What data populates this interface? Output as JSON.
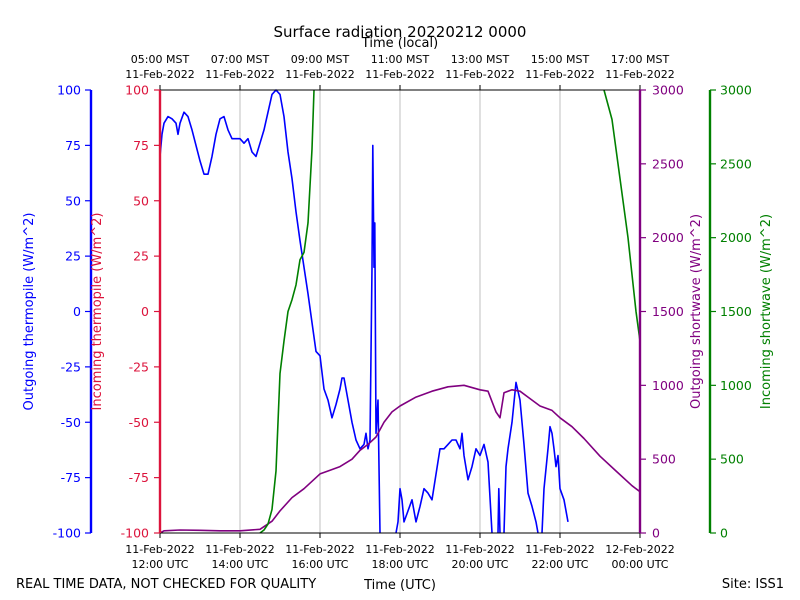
{
  "chart_data": {
    "type": "line",
    "title": "Surface radiation 20220212 0000",
    "top_axis_label": "Time (local)",
    "xlabel": "Time (UTC)",
    "footer_left": "REAL TIME DATA, NOT CHECKED FOR QUALITY",
    "footer_right": "Site: ISS1",
    "x_range_hours_utc": [
      12,
      24
    ],
    "bottom_ticks": [
      {
        "hour": 12,
        "line1": "11-Feb-2022",
        "line2": "12:00 UTC"
      },
      {
        "hour": 14,
        "line1": "11-Feb-2022",
        "line2": "14:00 UTC"
      },
      {
        "hour": 16,
        "line1": "11-Feb-2022",
        "line2": "16:00 UTC"
      },
      {
        "hour": 18,
        "line1": "11-Feb-2022",
        "line2": "18:00 UTC"
      },
      {
        "hour": 20,
        "line1": "11-Feb-2022",
        "line2": "20:00 UTC"
      },
      {
        "hour": 22,
        "line1": "11-Feb-2022",
        "line2": "22:00 UTC"
      },
      {
        "hour": 24,
        "line1": "12-Feb-2022",
        "line2": "00:00 UTC"
      }
    ],
    "top_ticks": [
      {
        "hour": 12,
        "line1": "05:00 MST",
        "line2": "11-Feb-2022"
      },
      {
        "hour": 14,
        "line1": "07:00 MST",
        "line2": "11-Feb-2022"
      },
      {
        "hour": 16,
        "line1": "09:00 MST",
        "line2": "11-Feb-2022"
      },
      {
        "hour": 18,
        "line1": "11:00 MST",
        "line2": "11-Feb-2022"
      },
      {
        "hour": 20,
        "line1": "13:00 MST",
        "line2": "11-Feb-2022"
      },
      {
        "hour": 22,
        "line1": "15:00 MST",
        "line2": "11-Feb-2022"
      },
      {
        "hour": 24,
        "line1": "17:00 MST",
        "line2": "11-Feb-2022"
      }
    ],
    "axes": [
      {
        "label": "Outgoing thermopile (W/m^2)",
        "color": "#0000ff",
        "range": [
          -100,
          100
        ],
        "ticks": [
          -100,
          -75,
          -50,
          -25,
          0,
          25,
          50,
          75,
          100
        ]
      },
      {
        "label": "Incoming thermopile (W/m^2)",
        "color": "#dc143c",
        "range": [
          -100,
          100
        ],
        "ticks": [
          -100,
          -75,
          -50,
          -25,
          0,
          25,
          50,
          75,
          100
        ]
      },
      {
        "label": "Outgoing shortwave (W/m^2)",
        "color": "#800080",
        "range": [
          0,
          3000
        ],
        "ticks": [
          0,
          500,
          1000,
          1500,
          2000,
          2500,
          3000
        ]
      },
      {
        "label": "Incoming shortwave (W/m^2)",
        "color": "#008000",
        "range": [
          0,
          3000
        ],
        "ticks": [
          0,
          500,
          1000,
          1500,
          2000,
          2500,
          3000
        ]
      }
    ],
    "grid": "vertical",
    "series": [
      {
        "axis": 0,
        "color": "#0000ff",
        "points": [
          [
            12.0,
            70
          ],
          [
            12.05,
            80
          ],
          [
            12.1,
            85
          ],
          [
            12.2,
            88
          ],
          [
            12.3,
            87
          ],
          [
            12.4,
            85
          ],
          [
            12.45,
            80
          ],
          [
            12.5,
            85
          ],
          [
            12.6,
            90
          ],
          [
            12.7,
            88
          ],
          [
            12.8,
            82
          ],
          [
            12.9,
            75
          ],
          [
            13.0,
            68
          ],
          [
            13.1,
            62
          ],
          [
            13.2,
            62
          ],
          [
            13.3,
            70
          ],
          [
            13.4,
            80
          ],
          [
            13.5,
            87
          ],
          [
            13.6,
            88
          ],
          [
            13.7,
            82
          ],
          [
            13.8,
            78
          ],
          [
            13.9,
            78
          ],
          [
            14.0,
            78
          ],
          [
            14.1,
            76
          ],
          [
            14.2,
            78
          ],
          [
            14.3,
            72
          ],
          [
            14.4,
            70
          ],
          [
            14.5,
            76
          ],
          [
            14.6,
            82
          ],
          [
            14.7,
            90
          ],
          [
            14.8,
            98
          ],
          [
            14.9,
            100
          ],
          [
            15.0,
            98
          ],
          [
            15.1,
            88
          ],
          [
            15.2,
            72
          ],
          [
            15.3,
            60
          ],
          [
            15.4,
            45
          ],
          [
            15.5,
            32
          ],
          [
            15.6,
            20
          ],
          [
            15.7,
            8
          ],
          [
            15.8,
            -5
          ],
          [
            15.9,
            -18
          ],
          [
            16.0,
            -20
          ],
          [
            16.1,
            -35
          ],
          [
            16.2,
            -40
          ],
          [
            16.3,
            -48
          ],
          [
            16.4,
            -42
          ],
          [
            16.5,
            -35
          ],
          [
            16.55,
            -30
          ],
          [
            16.6,
            -30
          ],
          [
            16.7,
            -40
          ],
          [
            16.8,
            -50
          ],
          [
            16.9,
            -58
          ],
          [
            17.0,
            -62
          ],
          [
            17.1,
            -60
          ],
          [
            17.15,
            -55
          ],
          [
            17.2,
            -62
          ],
          [
            17.25,
            -58
          ],
          [
            17.3,
            20
          ],
          [
            17.32,
            75
          ],
          [
            17.35,
            20
          ],
          [
            17.37,
            40
          ],
          [
            17.4,
            -55
          ],
          [
            17.45,
            -40
          ],
          [
            17.5,
            -100
          ],
          null,
          [
            17.9,
            -100
          ],
          [
            17.95,
            -95
          ],
          [
            18.0,
            -80
          ],
          [
            18.05,
            -85
          ],
          [
            18.1,
            -95
          ],
          [
            18.2,
            -90
          ],
          [
            18.3,
            -85
          ],
          [
            18.4,
            -95
          ],
          [
            18.5,
            -88
          ],
          [
            18.6,
            -80
          ],
          [
            18.7,
            -82
          ],
          [
            18.8,
            -85
          ],
          [
            19.0,
            -62
          ],
          [
            19.1,
            -62
          ],
          [
            19.2,
            -60
          ],
          [
            19.3,
            -58
          ],
          [
            19.4,
            -58
          ],
          [
            19.5,
            -62
          ],
          [
            19.55,
            -55
          ],
          [
            19.6,
            -65
          ],
          [
            19.7,
            -76
          ],
          [
            19.8,
            -70
          ],
          [
            19.9,
            -62
          ],
          [
            20.0,
            -65
          ],
          [
            20.1,
            -60
          ],
          [
            20.2,
            -68
          ],
          [
            20.3,
            -100
          ],
          null,
          [
            20.45,
            -100
          ],
          [
            20.47,
            -80
          ],
          [
            20.5,
            -100
          ],
          null,
          [
            20.6,
            -100
          ],
          [
            20.65,
            -70
          ],
          [
            20.7,
            -62
          ],
          [
            20.8,
            -50
          ],
          [
            20.9,
            -32
          ],
          [
            21.0,
            -40
          ],
          [
            21.1,
            -60
          ],
          [
            21.2,
            -82
          ],
          [
            21.3,
            -88
          ],
          [
            21.4,
            -95
          ],
          [
            21.45,
            -100
          ],
          null,
          [
            21.55,
            -100
          ],
          [
            21.6,
            -80
          ],
          [
            21.7,
            -62
          ],
          [
            21.75,
            -52
          ],
          [
            21.8,
            -55
          ],
          [
            21.85,
            -62
          ],
          [
            21.9,
            -70
          ],
          [
            21.95,
            -65
          ],
          [
            22.0,
            -80
          ],
          [
            22.1,
            -85
          ],
          [
            22.2,
            -95
          ]
        ]
      },
      {
        "axis": 2,
        "color": "#800080",
        "points": [
          [
            12.0,
            0
          ],
          [
            12.1,
            15
          ],
          [
            12.5,
            20
          ],
          [
            13.0,
            18
          ],
          [
            13.5,
            15
          ],
          [
            14.0,
            15
          ],
          [
            14.5,
            25
          ],
          [
            14.8,
            80
          ],
          [
            15.0,
            150
          ],
          [
            15.3,
            240
          ],
          [
            15.6,
            300
          ],
          [
            15.8,
            350
          ],
          [
            16.0,
            400
          ],
          [
            16.2,
            420
          ],
          [
            16.5,
            450
          ],
          [
            16.8,
            500
          ],
          [
            17.0,
            560
          ],
          [
            17.2,
            600
          ],
          [
            17.4,
            650
          ],
          [
            17.6,
            750
          ],
          [
            17.8,
            820
          ],
          [
            18.0,
            860
          ],
          [
            18.4,
            920
          ],
          [
            18.8,
            960
          ],
          [
            19.2,
            990
          ],
          [
            19.6,
            1000
          ],
          [
            20.0,
            970
          ],
          [
            20.2,
            960
          ],
          [
            20.4,
            820
          ],
          [
            20.5,
            780
          ],
          [
            20.6,
            950
          ],
          [
            20.8,
            970
          ],
          [
            21.0,
            960
          ],
          [
            21.2,
            920
          ],
          [
            21.5,
            860
          ],
          [
            21.8,
            830
          ],
          [
            22.0,
            780
          ],
          [
            22.3,
            720
          ],
          [
            22.6,
            640
          ],
          [
            23.0,
            520
          ],
          [
            23.4,
            420
          ],
          [
            23.8,
            320
          ],
          [
            24.0,
            280
          ]
        ]
      },
      {
        "axis": 3,
        "color": "#008000",
        "points": [
          [
            14.5,
            0
          ],
          [
            14.6,
            20
          ],
          [
            14.7,
            60
          ],
          [
            14.8,
            160
          ],
          [
            14.9,
            420
          ],
          [
            15.0,
            1080
          ],
          [
            15.1,
            1300
          ],
          [
            15.2,
            1500
          ],
          [
            15.3,
            1580
          ],
          [
            15.4,
            1680
          ],
          [
            15.5,
            1850
          ],
          [
            15.6,
            1900
          ],
          [
            15.7,
            2100
          ],
          [
            15.8,
            2600
          ],
          [
            15.85,
            3000
          ],
          null,
          [
            23.1,
            3000
          ],
          [
            23.3,
            2800
          ],
          [
            23.5,
            2400
          ],
          [
            23.7,
            2000
          ],
          [
            23.9,
            1500
          ],
          [
            24.0,
            1300
          ]
        ]
      }
    ]
  }
}
